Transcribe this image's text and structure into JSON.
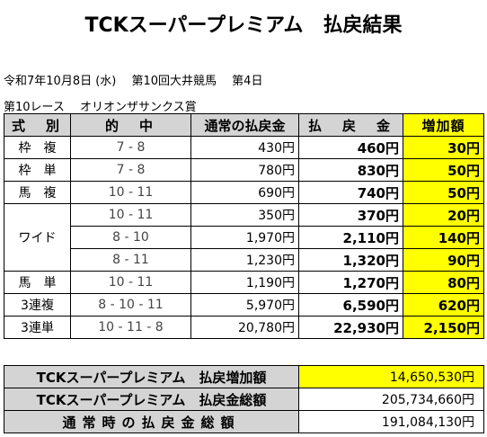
{
  "title": "TCKスーパープレミアム　払戻結果",
  "race_info": {
    "line1": "令和7年10月8日 (水)　 第10回大井競馬　 第4日",
    "line2": "第10レース　 オリオンザサンクス賞"
  },
  "table": {
    "headers": [
      "式　別",
      "的　中",
      "通常の払戻金",
      "払　戻　金",
      "増加額"
    ],
    "rows": [
      {
        "bet": "枠　複",
        "combo": "7 - 8",
        "normal": "430円",
        "payout": "460円",
        "bonus": "30円"
      },
      {
        "bet": "枠　単",
        "combo": "7 - 8",
        "normal": "780円",
        "payout": "830円",
        "bonus": "50円"
      },
      {
        "bet": "馬　複",
        "combo": "10 - 11",
        "normal": "690円",
        "payout": "740円",
        "bonus": "50円"
      },
      {
        "bet": "ワイド",
        "combo": "10 - 11",
        "normal": "350円",
        "payout": "370円",
        "bonus": "20円"
      },
      {
        "bet": "",
        "combo": "8 - 10",
        "normal": "1,970円",
        "payout": "2,110円",
        "bonus": "140円"
      },
      {
        "bet": "",
        "combo": "8 - 11",
        "normal": "1,230円",
        "payout": "1,320円",
        "bonus": "90円"
      },
      {
        "bet": "馬　単",
        "combo": "10 - 11",
        "normal": "1,190円",
        "payout": "1,270円",
        "bonus": "80円"
      },
      {
        "bet": "3連複",
        "combo": "8 - 10 - 11",
        "normal": "5,970円",
        "payout": "6,590円",
        "bonus": "620円"
      },
      {
        "bet": "3連単",
        "combo": "10 - 11 - 8",
        "normal": "20,780円",
        "payout": "22,930円",
        "bonus": "2,150円"
      }
    ]
  },
  "summary": {
    "increase_label": "TCKスーパープレミアム　払戻増加額",
    "increase_value": "14,650,530円",
    "total_label": "TCKスーパープレミアム　払戻金総額",
    "total_value": "205,734,660円",
    "normal_label": "通常時の払戻金総額",
    "normal_value": "191,084,130円"
  },
  "colors": {
    "header_bg": "#d4d4d4",
    "highlight": "#ffff00"
  }
}
